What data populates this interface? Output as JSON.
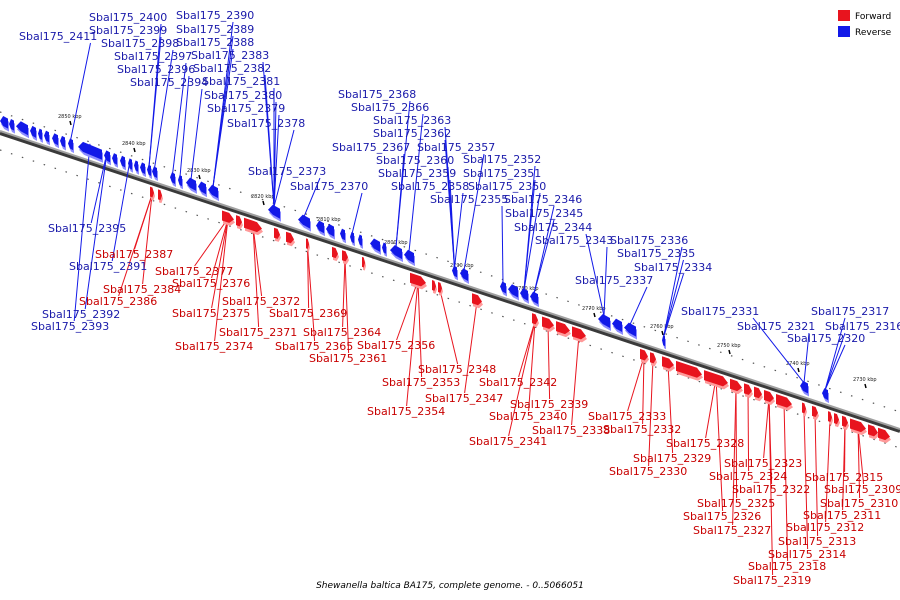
{
  "caption": "Shewanella baltica BA175, complete genome. - 0..5066051",
  "legend": [
    {
      "label": "Forward",
      "color": "#e8141e"
    },
    {
      "label": "Reverse",
      "color": "#1219e8"
    }
  ],
  "colors": {
    "forward": "#e8141e",
    "reverse": "#1219e8",
    "forward_label": "#c80000",
    "reverse_label": "#1a1aaa",
    "backbone": "#808080"
  },
  "ticks": [
    "2850 kbp",
    "2840 kbp",
    "2830 kbp",
    "2820 kbp",
    "2810 kbp",
    "2800 kbp",
    "2790 kbp",
    "2780 kbp",
    "2770 kbp",
    "2760 kbp",
    "2750 kbp",
    "2740 kbp",
    "2730 kbp"
  ],
  "reverse_genes": [
    "Sbal175_2411",
    "Sbal175_2400",
    "Sbal175_2399",
    "Sbal175_2398",
    "Sbal175_2397",
    "Sbal175_2396",
    "Sbal175_2394",
    "Sbal175_2390",
    "Sbal175_2389",
    "Sbal175_2388",
    "Sbal175_2383",
    "Sbal175_2382",
    "Sbal175_2381",
    "Sbal175_2380",
    "Sbal175_2379",
    "Sbal175_2378",
    "Sbal175_2373",
    "Sbal175_2370",
    "Sbal175_2368",
    "Sbal175_2366",
    "Sbal175_2367",
    "Sbal175_2363",
    "Sbal175_2362",
    "Sbal175_2360",
    "Sbal175_2359",
    "Sbal175_2358",
    "Sbal175_2357",
    "Sbal175_2352",
    "Sbal175_2351",
    "Sbal175_2350",
    "Sbal175_2355",
    "Sbal175_2346",
    "Sbal175_2345",
    "Sbal175_2344",
    "Sbal175_2343",
    "Sbal175_2337",
    "Sbal175_2336",
    "Sbal175_2335",
    "Sbal175_2334",
    "Sbal175_2331",
    "Sbal175_2321",
    "Sbal175_2320",
    "Sbal175_2317",
    "Sbal175_2316",
    "Sbal175_2395",
    "Sbal175_2391",
    "Sbal175_2392",
    "Sbal175_2393"
  ],
  "forward_genes": [
    "Sbal175_2387",
    "Sbal175_2384",
    "Sbal175_2386",
    "Sbal175_2377",
    "Sbal175_2376",
    "Sbal175_2375",
    "Sbal175_2374",
    "Sbal175_2372",
    "Sbal175_2371",
    "Sbal175_2369",
    "Sbal175_2364",
    "Sbal175_2365",
    "Sbal175_2361",
    "Sbal175_2356",
    "Sbal175_2353",
    "Sbal175_2354",
    "Sbal175_2348",
    "Sbal175_2347",
    "Sbal175_2342",
    "Sbal175_2339",
    "Sbal175_2340",
    "Sbal175_2341",
    "Sbal175_2338",
    "Sbal175_2333",
    "Sbal175_2332",
    "Sbal175_2329",
    "Sbal175_2330",
    "Sbal175_2328",
    "Sbal175_2323",
    "Sbal175_2324",
    "Sbal175_2322",
    "Sbal175_2325",
    "Sbal175_2326",
    "Sbal175_2327",
    "Sbal175_2315",
    "Sbal175_2309",
    "Sbal175_2310",
    "Sbal175_2311",
    "Sbal175_2312",
    "Sbal175_2313",
    "Sbal175_2314",
    "Sbal175_2318",
    "Sbal175_2319"
  ]
}
